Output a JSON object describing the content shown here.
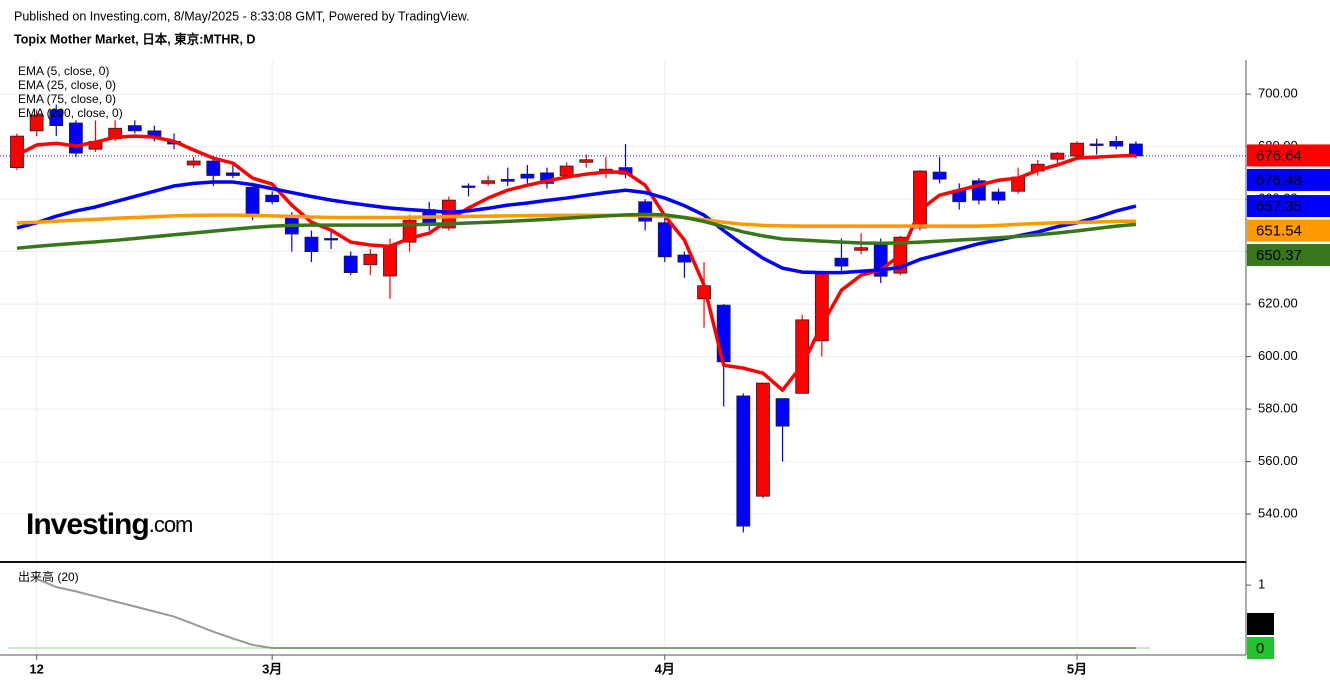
{
  "header": {
    "published": "Published on Investing.com, 8/May/2025 - 8:33:08 GMT, Powered by TradingView.",
    "symbol": "Topix Mother Market, 日本, 東京:MTHR, D"
  },
  "watermark": [
    "Investing",
    ".com"
  ],
  "chart_data": {
    "type": "candlestick",
    "categories": [
      null,
      "12",
      null,
      null,
      null,
      null,
      null,
      null,
      null,
      null,
      null,
      null,
      null,
      "3月",
      null,
      null,
      null,
      null,
      null,
      null,
      null,
      null,
      null,
      null,
      null,
      null,
      null,
      null,
      null,
      null,
      null,
      null,
      null,
      "4月",
      null,
      null,
      null,
      null,
      null,
      null,
      null,
      null,
      null,
      null,
      null,
      null,
      null,
      null,
      null,
      null,
      null,
      null,
      null,
      null,
      "5月",
      null,
      null,
      null
    ],
    "open": [
      672,
      686,
      694,
      689,
      679,
      683,
      688,
      686,
      682,
      673,
      674.5,
      670,
      664.5,
      661.5,
      653,
      645.5,
      645,
      638.3,
      635,
      630.7,
      643.6,
      656,
      649,
      665,
      666,
      667.5,
      669.5,
      670,
      669,
      674,
      670.3,
      672,
      659,
      651,
      638.7,
      622,
      619.6,
      585,
      546.8,
      584,
      586,
      606,
      637.5,
      640.5,
      643,
      631.8,
      649,
      670.3,
      663.4,
      667,
      662.7,
      663,
      670.7,
      675.2,
      676.4,
      681,
      682,
      681
    ],
    "high": [
      685,
      694,
      696,
      690,
      690,
      690,
      690,
      688,
      685,
      676,
      676,
      673,
      666,
      663,
      655,
      648,
      648,
      640,
      641,
      645,
      654,
      659,
      661,
      666,
      669,
      672,
      673,
      672,
      674,
      677,
      676,
      681,
      660,
      653,
      640,
      636,
      620,
      586,
      590,
      584,
      616,
      632,
      645,
      647,
      645,
      646,
      671,
      676,
      666,
      668,
      664,
      672,
      675,
      678,
      682,
      683,
      684,
      682
    ],
    "low": [
      671,
      684,
      684,
      676,
      678,
      682,
      685,
      682,
      679,
      672,
      665,
      668,
      652,
      658,
      640,
      636,
      641,
      631,
      631,
      622,
      640,
      648,
      648,
      661,
      665,
      665,
      666,
      664,
      668,
      672,
      668,
      668,
      648,
      636,
      630,
      611,
      581,
      533,
      546,
      560,
      586,
      600,
      632,
      639,
      628,
      631,
      648,
      666,
      656,
      658,
      658,
      662,
      669,
      673,
      676,
      677,
      679,
      675.5
    ],
    "close": [
      684,
      692,
      688,
      677.5,
      682,
      687,
      686,
      683.6,
      681,
      674.5,
      669,
      669,
      654,
      659,
      646.7,
      640,
      644.5,
      632,
      639,
      642.5,
      652,
      650,
      659.6,
      664.8,
      667,
      666.8,
      668,
      666,
      672.6,
      675,
      671.4,
      669.5,
      651.6,
      638,
      636,
      627,
      598,
      535.4,
      589.9,
      573.5,
      614,
      632,
      634.5,
      641.5,
      630.6,
      645.5,
      670.7,
      667.6,
      659,
      659.6,
      659.6,
      668.4,
      673.3,
      677.5,
      681.3,
      680.6,
      680.2,
      676.48
    ],
    "up_color": "#ff0000",
    "down_color": "#0000ff",
    "ylim": [
      522.5,
      713
    ],
    "yticks": [
      {
        "value": 540,
        "label": "540.00"
      },
      {
        "value": 560,
        "label": "560.00"
      },
      {
        "value": 580,
        "label": "580.00"
      },
      {
        "value": 600,
        "label": "600.00"
      },
      {
        "value": 620,
        "label": "620.00"
      },
      {
        "value": 640,
        "label": "640.00"
      },
      {
        "value": 660,
        "label": "660.00"
      },
      {
        "value": 680,
        "label": "680.00"
      },
      {
        "value": 700,
        "label": "700.00"
      }
    ],
    "grid": true,
    "overlays": [
      {
        "name": "EMA (5, close, 0)",
        "color": "#ff0000",
        "last_value": 676.64,
        "values": [
          676.8,
          680.6,
          681.3,
          680.2,
          681.7,
          683.6,
          684,
          683.6,
          682,
          678.7,
          675.6,
          673.7,
          668,
          665.7,
          657.7,
          651.2,
          648.2,
          643.6,
          642.5,
          642,
          645.1,
          647,
          652,
          656.6,
          660.4,
          663.4,
          665.3,
          666.9,
          668.4,
          669.5,
          670.3,
          670.3,
          665.3,
          653.7,
          644.4,
          627.2,
          596.7,
          595.6,
          593.7,
          587.2,
          596.7,
          612,
          625.3,
          631,
          633,
          638.7,
          655.8,
          661.5,
          663.4,
          665.3,
          667.2,
          668,
          671,
          673,
          675.6,
          676,
          676.4,
          676.64
        ]
      },
      {
        "name": "EMA (25, close, 0)",
        "color": "#0000ff",
        "last_value": 657.35,
        "values": [
          649,
          651,
          653.5,
          655.5,
          657,
          659,
          661,
          663,
          665,
          666,
          666.5,
          666.5,
          665.5,
          664,
          662.5,
          661,
          659.6,
          658.5,
          657.5,
          656.6,
          656,
          655.5,
          655,
          655.5,
          656.5,
          657.7,
          658.5,
          659.5,
          660.4,
          661.5,
          662.5,
          663.4,
          662.5,
          660.4,
          657.5,
          653.9,
          648,
          642.5,
          637.5,
          633.7,
          632.2,
          632,
          632,
          632.5,
          633,
          634,
          637,
          639,
          641,
          643,
          644.5,
          646,
          647.5,
          649.5,
          651,
          653,
          655.5,
          657.35
        ]
      },
      {
        "name": "EMA (75, close, 0)",
        "color": "#ff9900",
        "last_value": 651.54,
        "values": [
          650.9,
          651.2,
          651.6,
          652,
          652.3,
          652.7,
          653,
          653.3,
          653.6,
          653.8,
          653.9,
          653.9,
          653.8,
          653.6,
          653.4,
          653.2,
          653,
          653,
          653,
          653,
          653.1,
          653.2,
          653.3,
          653.4,
          653.5,
          653.6,
          653.7,
          653.8,
          653.8,
          653.8,
          653.8,
          653.8,
          653.6,
          653.5,
          653,
          652.2,
          651.2,
          650.4,
          650,
          649.8,
          649.7,
          649.7,
          649.7,
          649.7,
          649.7,
          649.7,
          649.7,
          649.7,
          649.7,
          649.7,
          650,
          650.4,
          650.7,
          651,
          651.1,
          651.3,
          651.5,
          651.54
        ]
      },
      {
        "name": "EMA (200, close, 0)",
        "color": "#38761d",
        "last_value": 650.37,
        "values": [
          641.3,
          642,
          642.6,
          643.2,
          643.7,
          644.3,
          645,
          645.7,
          646.4,
          647.1,
          647.8,
          648.5,
          649.2,
          649.7,
          650,
          650.1,
          650.1,
          650.1,
          650.1,
          650.1,
          650.2,
          650.4,
          650.6,
          650.9,
          651.2,
          651.5,
          651.9,
          652.3,
          652.7,
          653.2,
          653.6,
          654,
          654.2,
          654,
          653,
          651.5,
          649.5,
          647.5,
          646,
          644.8,
          644.4,
          644,
          643.6,
          643.3,
          643.2,
          643.3,
          643.6,
          644,
          644.4,
          644.8,
          645.3,
          645.8,
          646.4,
          647.1,
          647.9,
          648.8,
          649.7,
          650.37
        ]
      }
    ],
    "volume": {
      "title": "出来高 (20)",
      "ylim": [
        0,
        1.32
      ],
      "yticks": [
        1
      ],
      "series": [
        {
          "color": "#999999",
          "label_color": "#000000",
          "last_value": 0,
          "values": [
            null,
            1.1,
            0.97,
            0.9,
            0.82,
            0.74,
            0.66,
            0.58,
            0.5,
            0.38,
            0.26,
            0.15,
            0.05,
            0,
            0,
            0,
            0,
            0,
            0,
            0,
            0,
            0,
            0,
            0,
            0,
            0,
            0,
            0,
            0,
            0,
            0,
            0,
            0,
            0,
            0,
            0,
            0,
            0,
            0,
            0,
            0,
            0,
            0,
            0,
            0,
            0,
            0,
            0,
            0,
            0,
            0,
            0,
            0,
            0,
            0,
            0,
            0,
            0
          ]
        }
      ],
      "last_volume": 0,
      "last_volume_color": "#22c32e"
    }
  }
}
